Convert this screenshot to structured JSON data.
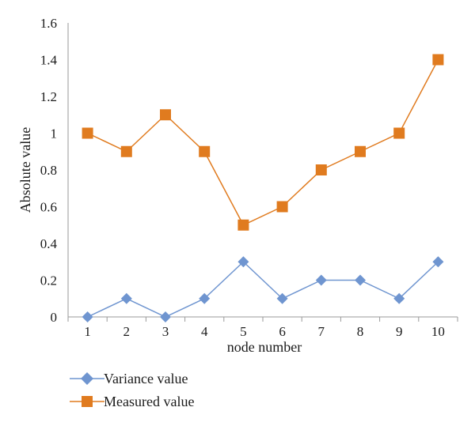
{
  "chart_data": {
    "type": "line",
    "xlabel": "node number",
    "ylabel": "Absolute value",
    "categories": [
      "1",
      "2",
      "3",
      "4",
      "5",
      "6",
      "7",
      "8",
      "9",
      "10"
    ],
    "ylim": [
      0,
      1.6
    ],
    "yticks": [
      "0",
      "0.2",
      "0.4",
      "0.6",
      "0.8",
      "1",
      "1.2",
      "1.4",
      "1.6"
    ],
    "grid": false,
    "legend_position": "bottom-left",
    "series": [
      {
        "name": "Variance value",
        "marker": "diamond",
        "color": "#6f95d0",
        "values": [
          0,
          0.1,
          0,
          0.1,
          0.3,
          0.1,
          0.2,
          0.2,
          0.1,
          0.3
        ]
      },
      {
        "name": "Measured value",
        "marker": "square",
        "color": "#e07b1f",
        "values": [
          1,
          0.9,
          1.1,
          0.9,
          0.5,
          0.6,
          0.8,
          0.9,
          1,
          1.4
        ]
      }
    ]
  }
}
